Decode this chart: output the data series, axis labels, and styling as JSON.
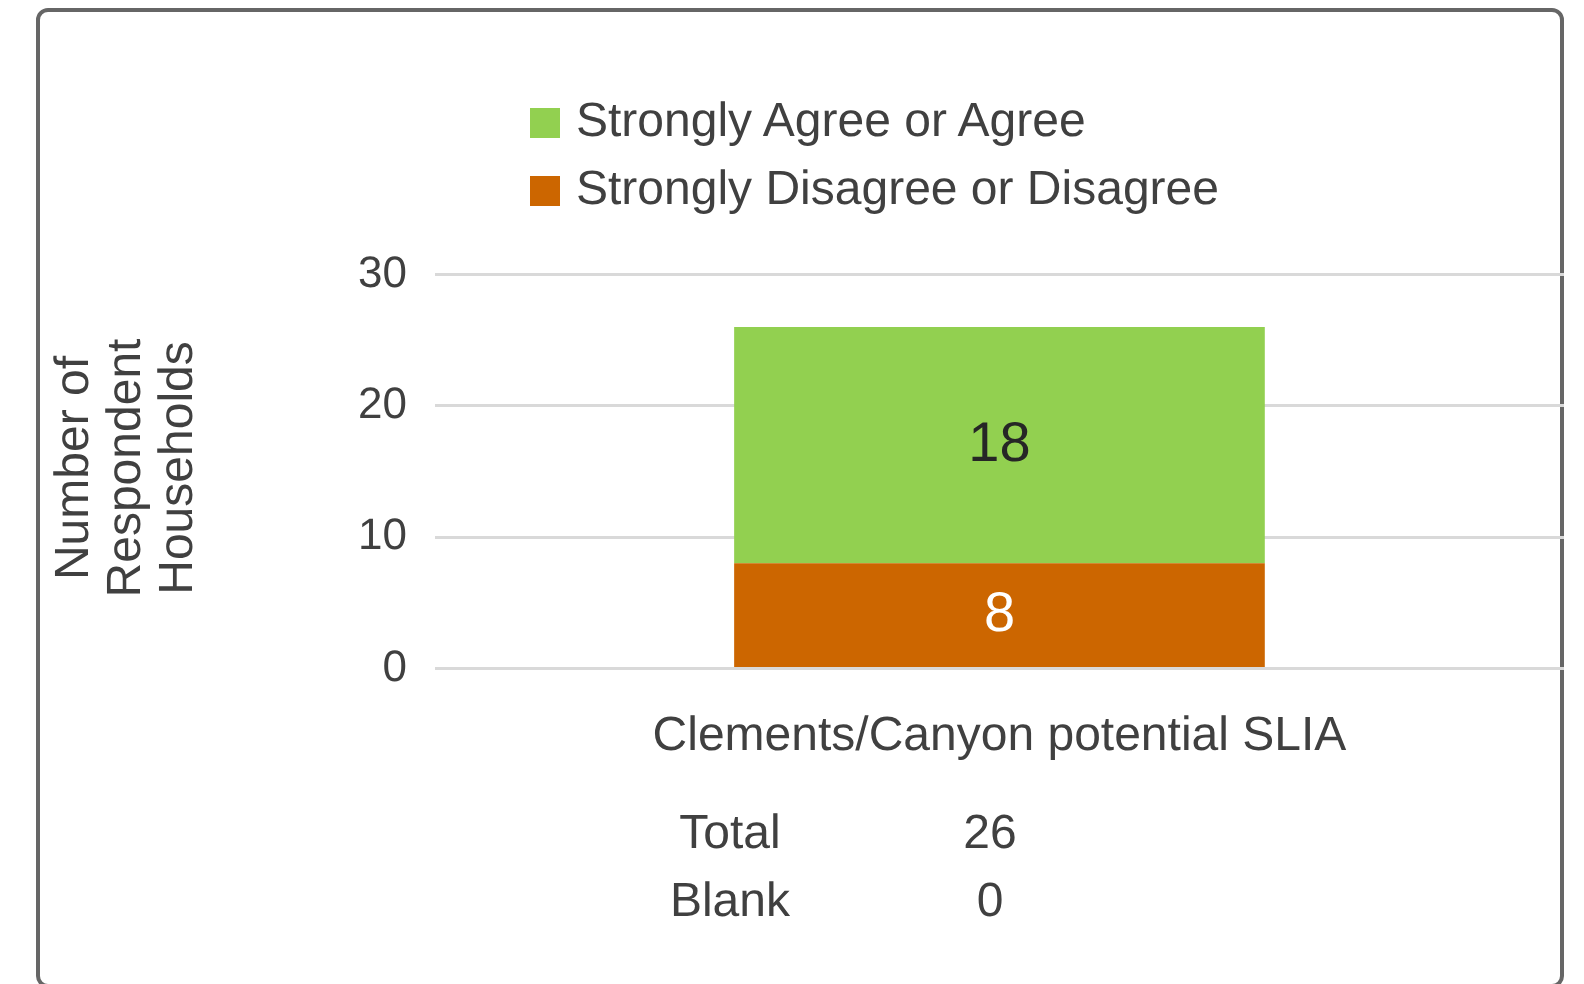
{
  "chart_data": {
    "type": "bar",
    "stacked": true,
    "ylabel": "Number of Respondent Households",
    "categories": [
      "Clements/Canyon potential SLIA"
    ],
    "series": [
      {
        "name": "Strongly Disagree or Disagree",
        "color": "#cc6600",
        "values": [
          8
        ]
      },
      {
        "name": "Strongly Agree or Agree",
        "color": "#92d050",
        "values": [
          18
        ]
      }
    ],
    "ylim": [
      0,
      30
    ],
    "yticks": [
      0,
      10,
      20,
      30
    ],
    "grid": "y",
    "legend": "top",
    "data_labels": true,
    "annotations": [
      "Total",
      "26",
      "Blank",
      "0"
    ]
  }
}
